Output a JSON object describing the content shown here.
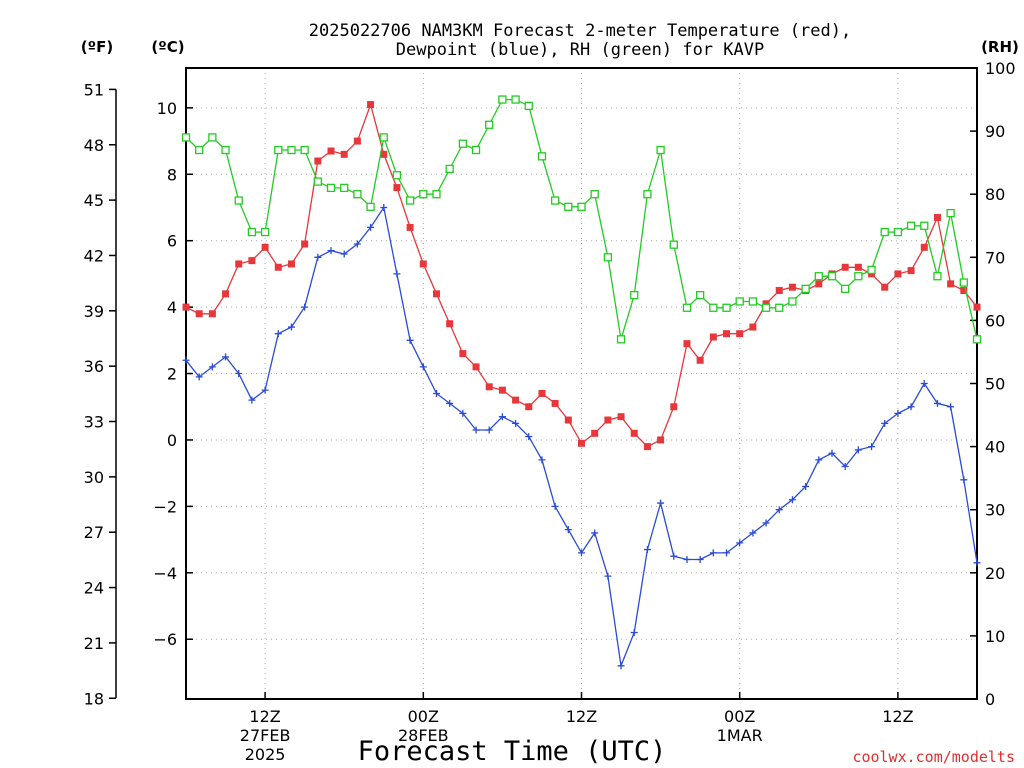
{
  "title_line1": "2025022706 NAM3KM Forecast 2-meter Temperature (red),",
  "title_line2": "Dewpoint (blue), RH (green) for KAVP",
  "unit_f": "(ºF)",
  "unit_c": "(ºC)",
  "unit_rh": "(RH)",
  "xlabel": "Forecast Time (UTC)",
  "credit": "coolwx.com/modelts",
  "colors": {
    "temperature": "#e8373b",
    "dewpoint": "#2a4bd7",
    "rh": "#22cc22",
    "credit": "#e03030"
  },
  "chart_data": {
    "type": "line",
    "x_unit": "hours since 2025-02-27 06Z",
    "xlim": [
      0,
      60
    ],
    "x_ticks": [
      {
        "x": 6,
        "line1": "12Z",
        "line2": "27FEB",
        "line3": "2025"
      },
      {
        "x": 18,
        "line1": "00Z",
        "line2": "28FEB",
        "line3": ""
      },
      {
        "x": 30,
        "line1": "12Z",
        "line2": "",
        "line3": ""
      },
      {
        "x": 42,
        "line1": "00Z",
        "line2": "1MAR",
        "line3": ""
      },
      {
        "x": 54,
        "line1": "12Z",
        "line2": "",
        "line3": ""
      }
    ],
    "ylim_c": [
      -7.8,
      11.2
    ],
    "y_ticks_c": [
      "10",
      "8",
      "6",
      "4",
      "2",
      "0",
      "−2",
      "−4",
      "−6"
    ],
    "y_ticks_f": [
      "51",
      "48",
      "45",
      "42",
      "39",
      "36",
      "33",
      "30",
      "27",
      "24",
      "21",
      "18"
    ],
    "ylim_rh": [
      0,
      100
    ],
    "y_ticks_rh": [
      "100",
      "90",
      "80",
      "70",
      "60",
      "50",
      "40",
      "30",
      "20",
      "10",
      "0"
    ],
    "grid": true,
    "series": [
      {
        "name": "Temperature (°C)",
        "color_key": "temperature",
        "marker": "filled-square",
        "axis": "c",
        "x": [
          0,
          1,
          2,
          3,
          4,
          5,
          6,
          7,
          8,
          9,
          10,
          11,
          12,
          13,
          14,
          15,
          16,
          17,
          18,
          19,
          20,
          21,
          22,
          23,
          24,
          25,
          26,
          27,
          28,
          29,
          30,
          31,
          32,
          33,
          34,
          35,
          36,
          37,
          38,
          39,
          40,
          41,
          42,
          43,
          44,
          45,
          46,
          47,
          48,
          49,
          50,
          51,
          52,
          53,
          54,
          55,
          56,
          57,
          58,
          59,
          60
        ],
        "values": [
          4.0,
          3.8,
          3.8,
          4.4,
          5.3,
          5.4,
          5.8,
          5.2,
          5.3,
          5.9,
          8.4,
          8.7,
          8.6,
          9.0,
          10.1,
          8.6,
          7.6,
          6.4,
          5.3,
          4.4,
          3.5,
          2.6,
          2.2,
          1.6,
          1.5,
          1.2,
          1.0,
          1.4,
          1.1,
          0.6,
          -0.1,
          0.2,
          0.6,
          0.7,
          0.2,
          -0.2,
          0.0,
          1.0,
          2.9,
          2.4,
          3.1,
          3.2,
          3.2,
          3.4,
          4.1,
          4.5,
          4.6,
          4.5,
          4.7,
          5.0,
          5.2,
          5.2,
          5.0,
          4.6,
          5.0,
          5.1,
          5.8,
          6.7,
          4.7,
          4.5,
          4.0
        ]
      },
      {
        "name": "Dewpoint (°C)",
        "color_key": "dewpoint",
        "marker": "plus",
        "axis": "c",
        "x": [
          0,
          1,
          2,
          3,
          4,
          5,
          6,
          7,
          8,
          9,
          10,
          11,
          12,
          13,
          14,
          15,
          16,
          17,
          18,
          19,
          20,
          21,
          22,
          23,
          24,
          25,
          26,
          27,
          28,
          29,
          30,
          31,
          32,
          33,
          34,
          35,
          36,
          37,
          38,
          39,
          40,
          41,
          42,
          43,
          44,
          45,
          46,
          47,
          48,
          49,
          50,
          51,
          52,
          53,
          54,
          55,
          56,
          57,
          58,
          59,
          60
        ],
        "values": [
          2.4,
          1.9,
          2.2,
          2.5,
          2.0,
          1.2,
          1.5,
          3.2,
          3.4,
          4.0,
          5.5,
          5.7,
          5.6,
          5.9,
          6.4,
          7.0,
          5.0,
          3.0,
          2.2,
          1.4,
          1.1,
          0.8,
          0.3,
          0.3,
          0.7,
          0.5,
          0.1,
          -0.6,
          -2.0,
          -2.7,
          -3.4,
          -2.8,
          -4.1,
          -6.8,
          -5.8,
          -3.3,
          -1.9,
          -3.5,
          -3.6,
          -3.6,
          -3.4,
          -3.4,
          -3.1,
          -2.8,
          -2.5,
          -2.1,
          -1.8,
          -1.4,
          -0.6,
          -0.4,
          -0.8,
          -0.3,
          -0.2,
          0.5,
          0.8,
          1.0,
          1.7,
          1.1,
          1.0,
          -1.2,
          -3.7
        ]
      },
      {
        "name": "RH (%)",
        "color_key": "rh",
        "marker": "open-square",
        "axis": "rh",
        "x": [
          0,
          1,
          2,
          3,
          4,
          5,
          6,
          7,
          8,
          9,
          10,
          11,
          12,
          13,
          14,
          15,
          16,
          17,
          18,
          19,
          20,
          21,
          22,
          23,
          24,
          25,
          26,
          27,
          28,
          29,
          30,
          31,
          32,
          33,
          34,
          35,
          36,
          37,
          38,
          39,
          40,
          41,
          42,
          43,
          44,
          45,
          46,
          47,
          48,
          49,
          50,
          51,
          52,
          53,
          54,
          55,
          56,
          57,
          58,
          59,
          60
        ],
        "values": [
          89,
          87,
          89,
          87,
          79,
          74,
          74,
          87,
          87,
          87,
          82,
          81,
          81,
          80,
          78,
          89,
          83,
          79,
          80,
          80,
          84,
          88,
          87,
          91,
          95,
          95,
          94,
          86,
          79,
          78,
          78,
          80,
          70,
          57,
          64,
          80,
          87,
          72,
          62,
          64,
          62,
          62,
          63,
          63,
          62,
          62,
          63,
          65,
          67,
          67,
          65,
          67,
          68,
          74,
          74,
          75,
          75,
          67,
          77,
          66,
          57
        ]
      }
    ]
  }
}
